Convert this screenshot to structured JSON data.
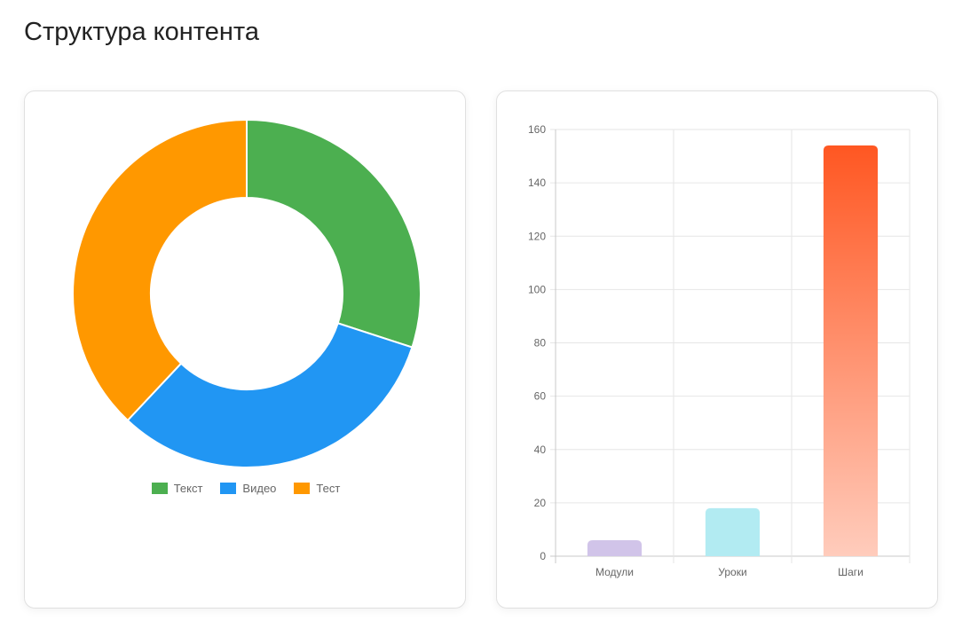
{
  "page": {
    "title": "Структура контента"
  },
  "colors": {
    "text": "#4CAF50",
    "video": "#2196F3",
    "test": "#FF9800",
    "modules": "#D1C4E9",
    "lessons": "#B2EBF2",
    "steps_top": "#FF5722",
    "steps_bottom": "#FFCCBC"
  },
  "chart_data": [
    {
      "type": "pie",
      "variant": "doughnut",
      "legend_position": "bottom",
      "labels": [
        "Текст",
        "Видео",
        "Тест"
      ],
      "values": [
        30,
        32,
        38
      ],
      "colors": [
        "#4CAF50",
        "#2196F3",
        "#FF9800"
      ]
    },
    {
      "type": "bar",
      "categories": [
        "Модули",
        "Уроки",
        "Шаги"
      ],
      "values": [
        6,
        18,
        154
      ],
      "ylim": [
        0,
        160
      ],
      "yticks": [
        0,
        20,
        40,
        60,
        80,
        100,
        120,
        140,
        160
      ],
      "grid": true,
      "colors": [
        "#D1C4E9",
        "#B2EBF2",
        "gradient:#FF5722-#FFCCBC"
      ]
    }
  ]
}
